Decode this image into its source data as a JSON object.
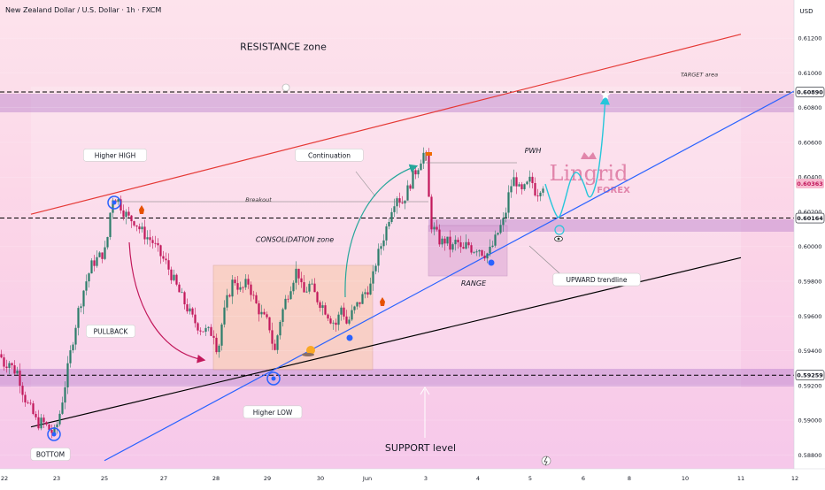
{
  "header": {
    "symbol": "New Zealand Dollar / U.S. Dollar · 1h · FXCM"
  },
  "currency": "USD",
  "watermark": {
    "line1": "Lingrid",
    "line2": "FOREX"
  },
  "colors": {
    "bullish": "#2d7d6b",
    "bearish": "#c2185b",
    "resistance": "#e53935",
    "trendline": "#2962ff",
    "support_line": "#000000",
    "zone": "#b97fcb",
    "projection": "#26c6da"
  },
  "chart_data": {
    "type": "candlestick",
    "x_ticks": [
      "22",
      "23",
      "25",
      "27",
      "28",
      "29",
      "30",
      "Jun",
      "3",
      "4",
      "5",
      "6",
      "8",
      "10",
      "11",
      "12"
    ],
    "y_ticks": [
      "0.61200",
      "0.61000",
      "0.60800",
      "0.60600",
      "0.60400",
      "0.60200",
      "0.60000",
      "0.59800",
      "0.59600",
      "0.59400",
      "0.59200",
      "0.59000",
      "0.58800"
    ],
    "ylim": [
      0.5872,
      0.6142
    ],
    "price_labels": [
      {
        "text": "0.60890",
        "value": 0.6089,
        "style": "level"
      },
      {
        "text": "0.60363",
        "value": 0.60363,
        "style": "current"
      },
      {
        "text": "0.60164",
        "value": 0.60164,
        "style": "level"
      },
      {
        "text": "0.59259",
        "value": 0.59259,
        "style": "level"
      }
    ],
    "levels": [
      {
        "value": 0.6089,
        "zone": [
          0.6084,
          0.6094
        ]
      },
      {
        "value": 0.60164,
        "zone": [
          0.6012,
          0.6022
        ]
      },
      {
        "value": 0.59259,
        "zone": [
          0.5916,
          0.5934
        ]
      }
    ],
    "price_path": [
      [
        0,
        0.5938
      ],
      [
        5,
        0.5932
      ],
      [
        10,
        0.5934
      ],
      [
        15,
        0.5929
      ],
      [
        20,
        0.5928
      ],
      [
        25,
        0.5918
      ],
      [
        30,
        0.591
      ],
      [
        36,
        0.5905
      ],
      [
        42,
        0.5898
      ],
      [
        48,
        0.5899
      ],
      [
        55,
        0.5895
      ],
      [
        61,
        0.5892
      ],
      [
        66,
        0.59
      ],
      [
        72,
        0.5916
      ],
      [
        80,
        0.594
      ],
      [
        88,
        0.5962
      ],
      [
        96,
        0.5978
      ],
      [
        104,
        0.599
      ],
      [
        112,
        0.5994
      ],
      [
        120,
        0.5998
      ],
      [
        124,
        0.6018
      ],
      [
        128,
        0.603
      ],
      [
        134,
        0.6026
      ],
      [
        140,
        0.602
      ],
      [
        146,
        0.6016
      ],
      [
        152,
        0.6015
      ],
      [
        158,
        0.601
      ],
      [
        165,
        0.6006
      ],
      [
        172,
        0.6003
      ],
      [
        180,
        0.5996
      ],
      [
        188,
        0.599
      ],
      [
        195,
        0.5982
      ],
      [
        202,
        0.5974
      ],
      [
        210,
        0.5966
      ],
      [
        218,
        0.5958
      ],
      [
        226,
        0.5953
      ],
      [
        234,
        0.5951
      ],
      [
        242,
        0.595
      ],
      [
        246,
        0.5938
      ],
      [
        250,
        0.5954
      ],
      [
        256,
        0.5968
      ],
      [
        264,
        0.5982
      ],
      [
        272,
        0.5974
      ],
      [
        280,
        0.598
      ],
      [
        288,
        0.5968
      ],
      [
        296,
        0.596
      ],
      [
        304,
        0.5955
      ],
      [
        310,
        0.5938
      ],
      [
        316,
        0.5957
      ],
      [
        322,
        0.5968
      ],
      [
        330,
        0.598
      ],
      [
        336,
        0.5988
      ],
      [
        342,
        0.5972
      ],
      [
        350,
        0.5978
      ],
      [
        358,
        0.597
      ],
      [
        366,
        0.5965
      ],
      [
        374,
        0.5958
      ],
      [
        380,
        0.5955
      ],
      [
        386,
        0.5966
      ],
      [
        392,
        0.5955
      ],
      [
        398,
        0.5962
      ],
      [
        406,
        0.5968
      ],
      [
        414,
        0.5975
      ],
      [
        420,
        0.5978
      ],
      [
        424,
        0.599
      ],
      [
        430,
        0.6
      ],
      [
        436,
        0.601
      ],
      [
        442,
        0.6022
      ],
      [
        448,
        0.603
      ],
      [
        454,
        0.6025
      ],
      [
        460,
        0.6032
      ],
      [
        466,
        0.604
      ],
      [
        472,
        0.6046
      ],
      [
        478,
        0.6054
      ],
      [
        482,
        0.605
      ],
      [
        486,
        0.6014
      ],
      [
        492,
        0.6008
      ],
      [
        498,
        0.6002
      ],
      [
        504,
        0.6004
      ],
      [
        510,
        0.5998
      ],
      [
        516,
        0.6004
      ],
      [
        522,
        0.5996
      ],
      [
        528,
        0.6002
      ],
      [
        534,
        0.5998
      ],
      [
        540,
        0.6
      ],
      [
        546,
        0.5996
      ],
      [
        552,
        0.5996
      ],
      [
        558,
        0.6002
      ],
      [
        564,
        0.601
      ],
      [
        570,
        0.6016
      ],
      [
        576,
        0.6034
      ],
      [
        582,
        0.604
      ],
      [
        588,
        0.603
      ],
      [
        594,
        0.6034
      ],
      [
        600,
        0.6039
      ],
      [
        606,
        0.603
      ],
      [
        612,
        0.6036
      ],
      [
        616,
        0.6036
      ]
    ],
    "resistance_line": [
      [
        35,
        0.60186
      ],
      [
        837,
        0.61223
      ]
    ],
    "support_line": [
      [
        35,
        0.58961
      ],
      [
        837,
        0.59936
      ]
    ],
    "trendline": [
      [
        118,
        0.58767
      ],
      [
        915,
        0.60944
      ]
    ],
    "projection_path": [
      [
        616,
        0.6036
      ],
      [
        622,
        0.6026
      ],
      [
        628,
        0.6018
      ],
      [
        632,
        0.6016
      ],
      [
        638,
        0.6026
      ],
      [
        645,
        0.604
      ],
      [
        652,
        0.6044
      ],
      [
        660,
        0.6036
      ],
      [
        666,
        0.6026
      ],
      [
        674,
        0.6036
      ],
      [
        680,
        0.6058
      ],
      [
        684,
        0.6086
      ]
    ],
    "annotations": [
      {
        "id": "resistance-zone",
        "text": "RESISTANCE zone",
        "x": 320,
        "value": 0.61152,
        "style": "title"
      },
      {
        "id": "target-area",
        "text": "TARGET area",
        "x": 790,
        "value": 0.6099,
        "style": "small-italic"
      },
      {
        "id": "support-level",
        "text": "SUPPORT level",
        "x": 475,
        "value": 0.58842,
        "style": "title"
      },
      {
        "id": "consolidation-zone",
        "text": "CONSOLIDATION zone",
        "x": 333,
        "value": 0.60041,
        "style": "italic"
      },
      {
        "id": "breakout",
        "text": "Breakout",
        "x": 292,
        "value": 0.6027,
        "style": "small-italic"
      },
      {
        "id": "range",
        "text": "RANGE",
        "x": 535,
        "value": 0.5979,
        "style": "italic"
      },
      {
        "id": "pwh",
        "text": "PWH",
        "x": 602,
        "value": 0.60553,
        "style": "italic"
      },
      {
        "id": "higher-high",
        "text": "Higher HIGH",
        "x": 130,
        "value": 0.60527,
        "style": "callout"
      },
      {
        "id": "continuation",
        "text": "Continuation",
        "x": 372,
        "value": 0.60527,
        "style": "callout"
      },
      {
        "id": "pullback",
        "text": "PULLBACK",
        "x": 125,
        "value": 0.59513,
        "style": "callout"
      },
      {
        "id": "higher-low",
        "text": "Higher LOW",
        "x": 308,
        "value": 0.59047,
        "style": "callout"
      },
      {
        "id": "bottom",
        "text": "BOTTOM",
        "x": 57,
        "value": 0.58804,
        "style": "callout"
      },
      {
        "id": "upward-trendline",
        "text": "UPWARD trendline",
        "x": 674,
        "value": 0.5981,
        "style": "callout"
      }
    ]
  }
}
